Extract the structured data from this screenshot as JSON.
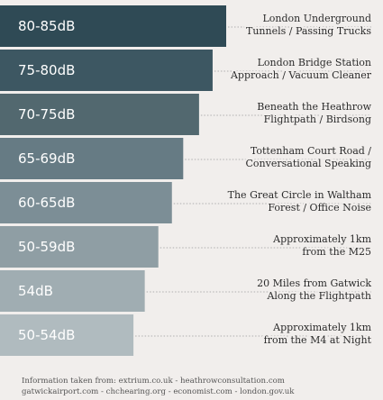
{
  "chart_data": {
    "type": "bar",
    "orientation": "horizontal",
    "relative_length": [
      100,
      94,
      88,
      81,
      76,
      70,
      64,
      59
    ],
    "categories": [
      "80-85dB",
      "75-80dB",
      "70-75dB",
      "65-69dB",
      "60-65dB",
      "50-59dB",
      "54dB",
      "50-54dB"
    ],
    "descriptions": [
      [
        "London Underground",
        "Tunnels / Passing Trucks"
      ],
      [
        "London Bridge Station",
        "Approach / Vacuum Cleaner"
      ],
      [
        "Beneath the Heathrow",
        "Flightpath / Birdsong"
      ],
      [
        "Tottenham Court Road /",
        "Conversational Speaking"
      ],
      [
        "The Great Circle in Waltham",
        "Forest / Office Noise"
      ],
      [
        "Approximately 1km",
        "from the M25"
      ],
      [
        "20 Miles from Gatwick",
        "Along the Flightpath"
      ],
      [
        "Approximately 1km",
        "from the M4 at Night"
      ]
    ],
    "colors": [
      "#2f4a55",
      "#3d5762",
      "#52686f",
      "#667b84",
      "#7c8e96",
      "#8f9ea4",
      "#a0adb2",
      "#b0bbbf"
    ]
  },
  "source": {
    "line1": "Information taken from: extrium.co.uk - heathrowconsultation.com",
    "line2": "gatwickairport.com - chchearing.org - economist.com - london.gov.uk"
  }
}
